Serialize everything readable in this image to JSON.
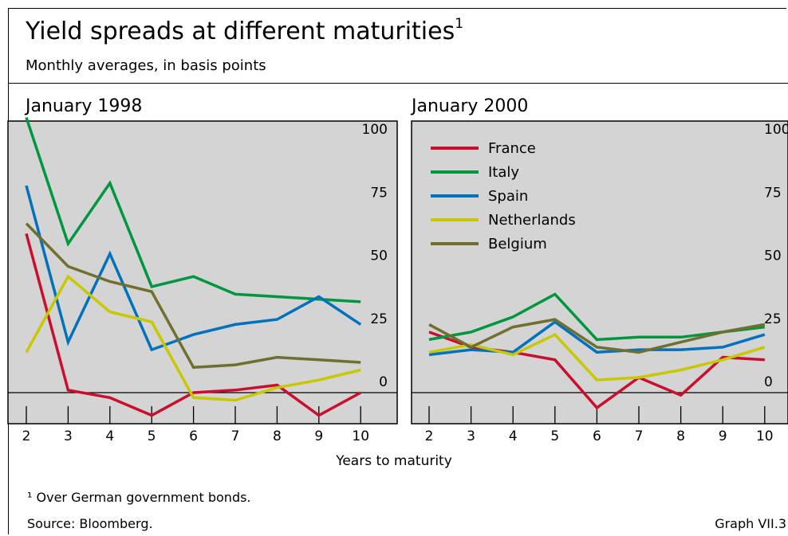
{
  "title": "Yield spreads at different maturities",
  "title_footnote_marker": "1",
  "subtitle": "Monthly averages, in basis points",
  "footnote": "¹ Over German government bonds.",
  "source": "Source: Bloomberg.",
  "graph_id": "Graph VII.3",
  "colors": {
    "plot_background": "#d4d4d4",
    "France": "#c8102e",
    "Italy": "#00963f",
    "Spain": "#0072bc",
    "Netherlands": "#c8c800",
    "Belgium": "#6f6f2f"
  },
  "chart_data": [
    {
      "type": "line",
      "title": "January 1998",
      "x": [
        2,
        3,
        4,
        5,
        6,
        7,
        8,
        9,
        10
      ],
      "xlabel": "Years to maturity",
      "ylabel": "",
      "ylim": [
        -12,
        110
      ],
      "yticks": [
        0,
        25,
        50,
        75,
        100
      ],
      "grid": false,
      "legend": false,
      "series": [
        {
          "name": "France",
          "values": [
            63,
            1,
            -2,
            -9,
            0,
            1,
            3,
            -9,
            0
          ]
        },
        {
          "name": "Italy",
          "values": [
            109,
            59,
            83,
            42,
            46,
            39,
            38,
            37,
            36
          ]
        },
        {
          "name": "Spain",
          "values": [
            82,
            20,
            55,
            17,
            23,
            27,
            29,
            38,
            27
          ]
        },
        {
          "name": "Netherlands",
          "values": [
            16,
            46,
            32,
            28,
            -2,
            -3,
            2,
            5,
            9
          ]
        },
        {
          "name": "Belgium",
          "values": [
            67,
            50,
            44,
            40,
            10,
            11,
            14,
            13,
            12
          ]
        }
      ]
    },
    {
      "type": "line",
      "title": "January 2000",
      "x": [
        2,
        3,
        4,
        5,
        6,
        7,
        8,
        9,
        10
      ],
      "xlabel": "Years to maturity",
      "ylabel": "",
      "ylim": [
        -12,
        110
      ],
      "yticks": [
        0,
        25,
        50,
        75,
        100
      ],
      "grid": false,
      "legend": true,
      "legend_position": "top-left",
      "legend_entries": [
        "France",
        "Italy",
        "Spain",
        "Netherlands",
        "Belgium"
      ],
      "series": [
        {
          "name": "France",
          "values": [
            24,
            18,
            16,
            13,
            -6,
            6,
            -1,
            14,
            13
          ]
        },
        {
          "name": "Italy",
          "values": [
            21,
            24,
            30,
            39,
            21,
            22,
            22,
            24,
            26
          ]
        },
        {
          "name": "Spain",
          "values": [
            15,
            17,
            16,
            28,
            16,
            17,
            17,
            18,
            23
          ]
        },
        {
          "name": "Netherlands",
          "values": [
            16,
            19,
            15,
            23,
            5,
            6,
            9,
            13,
            18
          ]
        },
        {
          "name": "Belgium",
          "values": [
            27,
            18,
            26,
            29,
            18,
            16,
            20,
            24,
            27
          ]
        }
      ]
    }
  ]
}
